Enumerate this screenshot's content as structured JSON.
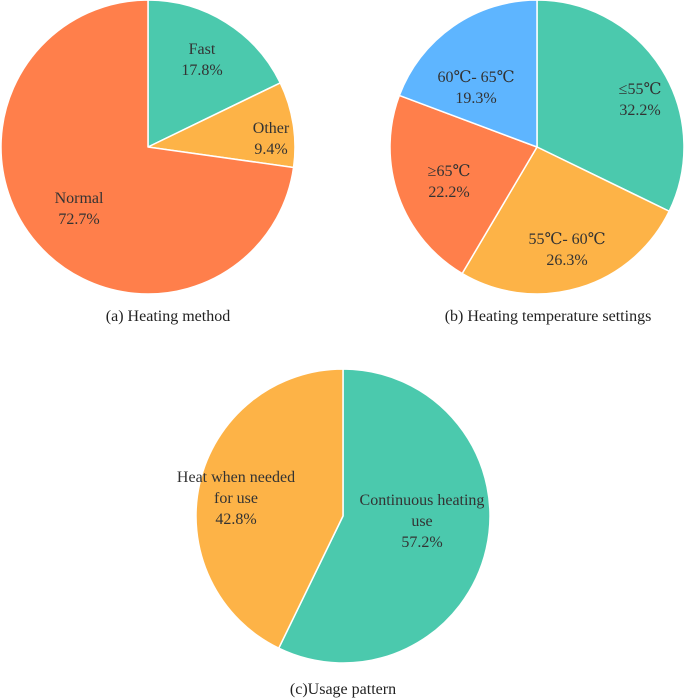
{
  "chart_data": [
    {
      "type": "pie",
      "caption": "(a) Heating method",
      "slices": [
        {
          "name": "Fast",
          "value": 17.8,
          "label": "17.8%",
          "color": "#4BC9AD"
        },
        {
          "name": "Other",
          "value": 9.4,
          "label": "9.4%",
          "color": "#FDB347"
        },
        {
          "name": "Normal",
          "value": 72.7,
          "label": "72.7%",
          "color": "#FF7F4B"
        }
      ]
    },
    {
      "type": "pie",
      "caption": "(b) Heating temperature settings",
      "slices": [
        {
          "name": "≤55℃",
          "value": 32.2,
          "label": "32.2%",
          "color": "#4BC9AD"
        },
        {
          "name": "55℃- 60℃",
          "value": 26.3,
          "label": "26.3%",
          "color": "#FDB347"
        },
        {
          "name": "≥65℃",
          "value": 22.2,
          "label": "22.2%",
          "color": "#FF7F4B"
        },
        {
          "name": "60℃- 65℃",
          "value": 19.3,
          "label": "19.3%",
          "color": "#5EB5FF"
        }
      ]
    },
    {
      "type": "pie",
      "caption": "(c)Usage pattern",
      "slices": [
        {
          "name": "Continuous heating use",
          "value": 57.2,
          "label": "57.2%",
          "color": "#4BC9AD"
        },
        {
          "name": "Heat when needed for use",
          "value": 42.8,
          "label": "42.8%",
          "color": "#FDB347"
        }
      ]
    }
  ]
}
